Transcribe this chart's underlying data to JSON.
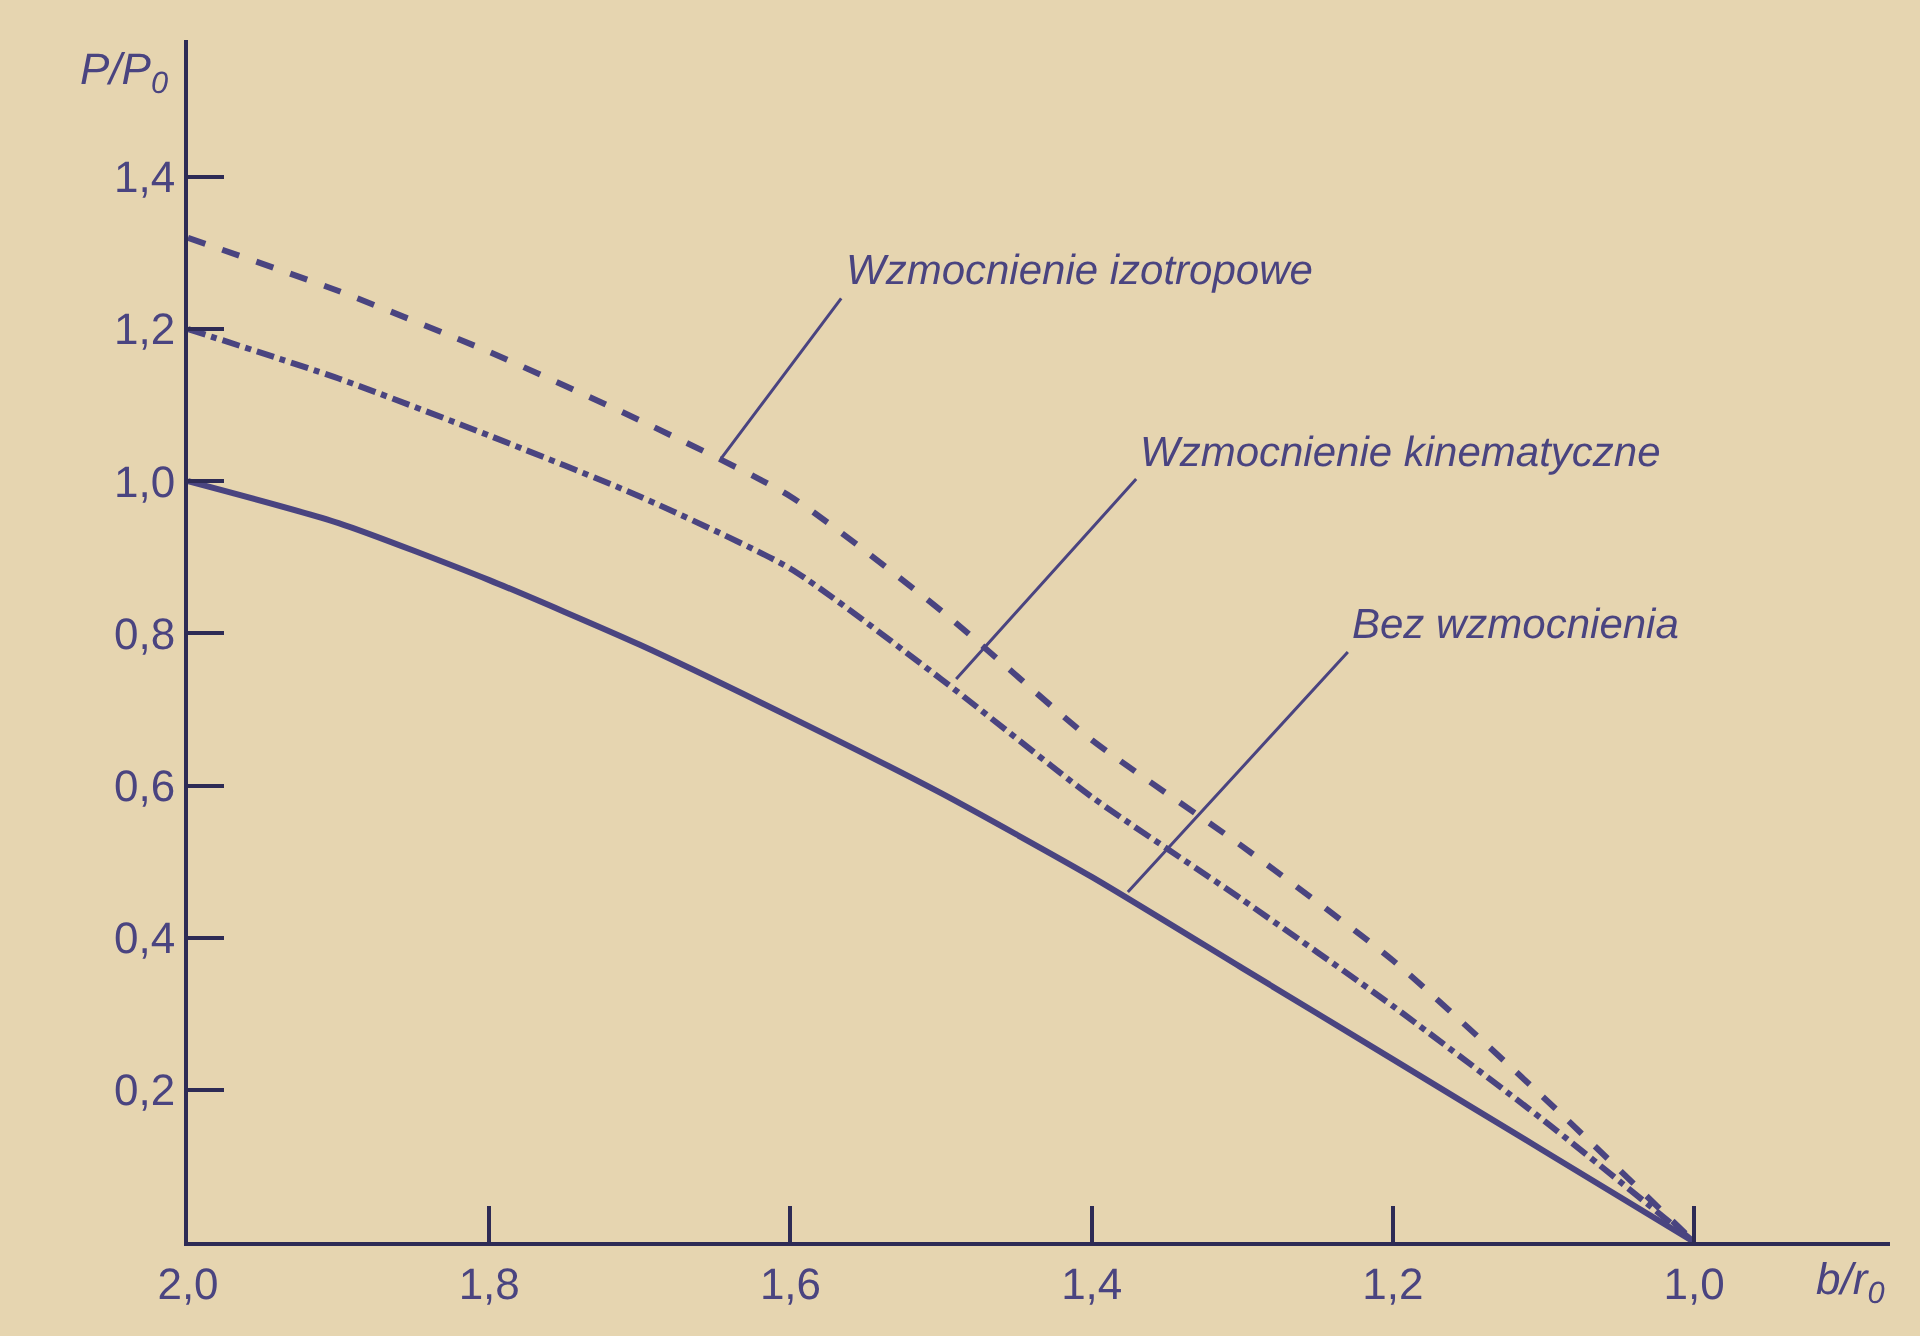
{
  "chart_data": {
    "type": "line",
    "xlabel": "b/r$_{0}$",
    "ylabel": "P/P$_{0}$",
    "x": [
      2.0,
      1.9,
      1.8,
      1.7,
      1.6,
      1.5,
      1.4,
      1.3,
      1.2,
      1.1,
      1.0
    ],
    "series": [
      {
        "color": "#4a4480",
        "line_style": "dashed",
        "values": [
          1.32,
          1.25,
          1.17,
          1.08,
          0.98,
          0.83,
          0.66,
          0.52,
          0.37,
          0.19,
          0.0
        ]
      },
      {
        "color": "#4a4480",
        "line_style": "dashdot",
        "values": [
          1.2,
          1.135,
          1.06,
          0.98,
          0.885,
          0.74,
          0.585,
          0.45,
          0.31,
          0.16,
          0.0
        ]
      },
      {
        "color": "#4a4480",
        "line_style": "solid",
        "values": [
          1.0,
          0.945,
          0.87,
          0.785,
          0.69,
          0.59,
          0.48,
          0.36,
          0.24,
          0.12,
          0.0
        ]
      }
    ],
    "annotations": [
      {
        "text": "Wzmocnienie izotropowe",
        "x": 1.646,
        "y": 1.03
      },
      {
        "text": "Wzmocnienie kinematyczne",
        "x": 1.49,
        "y": 0.74
      },
      {
        "text": "Bez wzmocnienia",
        "x": 1.376,
        "y": 0.46
      }
    ],
    "xlim": [
      2.0,
      0.87
    ],
    "ylim": [
      0,
      1.58
    ],
    "xticks": [
      {
        "value": 2.0,
        "label": "2,0"
      },
      {
        "value": 1.8,
        "label": "1,8"
      },
      {
        "value": 1.6,
        "label": "1,6"
      },
      {
        "value": 1.4,
        "label": "1,4"
      },
      {
        "value": 1.2,
        "label": "1,2"
      },
      {
        "value": 1.0,
        "label": "1,0"
      }
    ],
    "yticks": [
      {
        "value": 0.2,
        "label": "0,2"
      },
      {
        "value": 0.4,
        "label": "0,4"
      },
      {
        "value": 0.6,
        "label": "0,6"
      },
      {
        "value": 0.8,
        "label": "0,8"
      },
      {
        "value": 1.0,
        "label": "1,0"
      },
      {
        "value": 1.2,
        "label": "1,2"
      },
      {
        "value": 1.4,
        "label": "1,4"
      }
    ],
    "grid": false,
    "legend": false,
    "marker": "none"
  }
}
